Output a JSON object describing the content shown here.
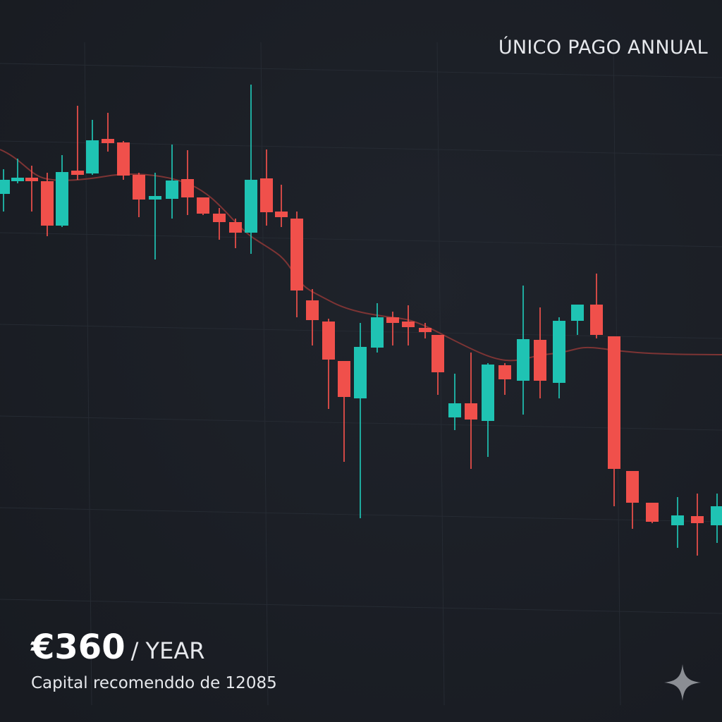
{
  "header": {
    "label": "ÚNICO PAGO ANNUAL"
  },
  "price": {
    "amount": "€360",
    "period": "/ YEAR"
  },
  "note": "Capital recomenddo de 12085"
}
